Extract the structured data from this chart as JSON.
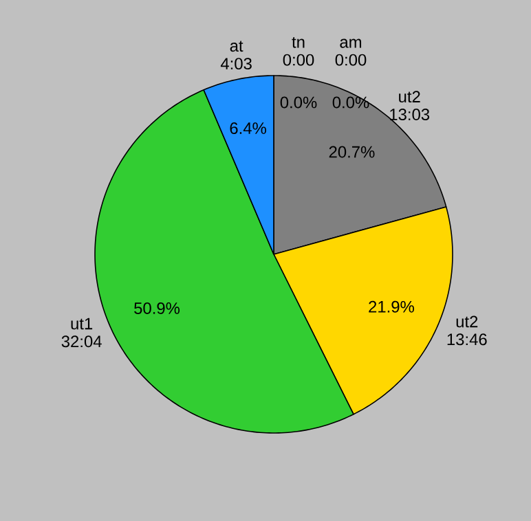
{
  "chart_data": {
    "type": "pie",
    "categories": [
      "ut2 13:03",
      "ut2 13:46",
      "ut1 32:04",
      "at 4:03",
      "tn 0:00",
      "am 0:00"
    ],
    "values": [
      20.7,
      21.9,
      50.9,
      6.4,
      0.0,
      0.0
    ],
    "value_labels": [
      "20.7%",
      "21.9%",
      "50.9%",
      "6.4%",
      "0.0%",
      "0.0%"
    ],
    "colors": [
      "#808080",
      "#ffd700",
      "#32cd32",
      "#1e90ff",
      "#ff0000",
      "#ff00ff"
    ]
  }
}
